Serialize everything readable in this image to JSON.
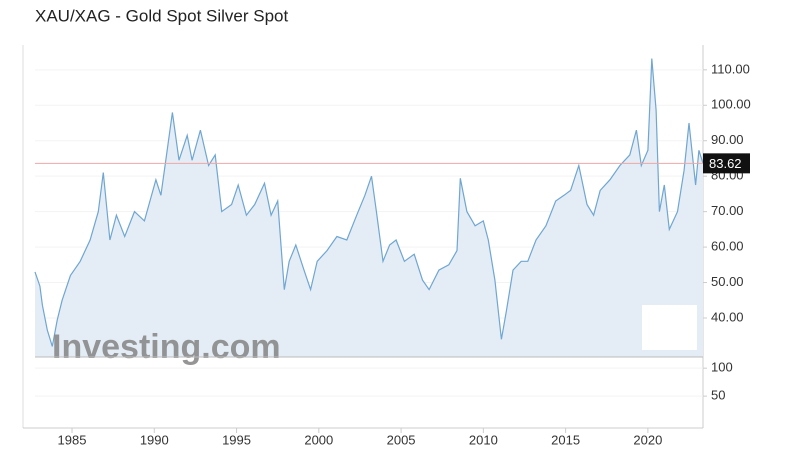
{
  "chart_data": [
    {
      "type": "line",
      "title": "XAU/XAG - Gold Spot Silver Spot",
      "watermark": "Investing.com",
      "x": [
        1982.75,
        1983.05,
        1983.2,
        1983.5,
        1983.8,
        1984.1,
        1984.4,
        1984.9,
        1985.5,
        1986.1,
        1986.6,
        1986.9,
        1987.3,
        1987.7,
        1988.2,
        1988.8,
        1989.4,
        1990.1,
        1990.4,
        1990.7,
        1991.1,
        1991.5,
        1992.0,
        1992.3,
        1992.8,
        1993.3,
        1993.7,
        1994.1,
        1994.7,
        1995.1,
        1995.6,
        1996.1,
        1996.7,
        1997.1,
        1997.5,
        1997.9,
        1998.2,
        1998.6,
        1999.1,
        1999.5,
        1999.9,
        2000.5,
        2001.1,
        2001.7,
        2002.3,
        2002.8,
        2003.2,
        2003.5,
        2003.9,
        2004.3,
        2004.7,
        2005.2,
        2005.8,
        2006.3,
        2006.7,
        2007.3,
        2007.9,
        2008.4,
        2008.6,
        2009.0,
        2009.5,
        2010.0,
        2010.3,
        2010.7,
        2011.1,
        2011.4,
        2011.8,
        2012.3,
        2012.7,
        2013.2,
        2013.8,
        2014.4,
        2014.9,
        2015.3,
        2015.8,
        2016.3,
        2016.7,
        2017.1,
        2017.7,
        2018.3,
        2018.9,
        2019.3,
        2019.6,
        2020.0,
        2020.24,
        2020.5,
        2020.7,
        2021.0,
        2021.3,
        2021.8,
        2022.2,
        2022.5,
        2022.9,
        2023.1,
        2023.35
      ],
      "series": [
        {
          "name": "XAU/XAG",
          "color": "#6fa6d2",
          "values": [
            53,
            49,
            43.6,
            36.6,
            32,
            39.4,
            45,
            52,
            56,
            62,
            70,
            81,
            62,
            69,
            63,
            70,
            67.4,
            79,
            74.6,
            84.5,
            98,
            84.5,
            91.5,
            84.5,
            93,
            83,
            86,
            70,
            72,
            77.5,
            69,
            72,
            78,
            69,
            73,
            48,
            56,
            60.6,
            53.5,
            48,
            56,
            59,
            63,
            62,
            69,
            74.6,
            80,
            70,
            56,
            60.6,
            62,
            56,
            58,
            50.7,
            48,
            53.5,
            55,
            59,
            79.4,
            70,
            66,
            67.4,
            62,
            50.7,
            34,
            42,
            53.5,
            56,
            56,
            62,
            66,
            73,
            74.6,
            76,
            83,
            72,
            69,
            76,
            79,
            83,
            86,
            93,
            83,
            87.3,
            113.2,
            98.6,
            70,
            77.5,
            65,
            70,
            81.7,
            95,
            77.5,
            87.3,
            83.62
          ]
        }
      ],
      "current_value": 83.62,
      "xlim": [
        1982.75,
        2023.35
      ],
      "xticks": [
        1985,
        1990,
        1995,
        2000,
        2005,
        2010,
        2015,
        2020
      ],
      "ylim": [
        29,
        117
      ],
      "yticks": [
        {
          "value": 40,
          "label": "40.00"
        },
        {
          "value": 50,
          "label": "50.00"
        },
        {
          "value": 60,
          "label": "60.00"
        },
        {
          "value": 70,
          "label": "70.00"
        },
        {
          "value": 80,
          "label": "80.00"
        },
        {
          "value": 90,
          "label": "90.00"
        },
        {
          "value": 100,
          "label": "100.00"
        },
        {
          "value": 110,
          "label": "110.00"
        }
      ],
      "grid": true
    },
    {
      "type": "bar",
      "values": [],
      "ylim": [
        -7,
        120
      ],
      "yticks": [
        50,
        100
      ],
      "grid": true
    }
  ]
}
